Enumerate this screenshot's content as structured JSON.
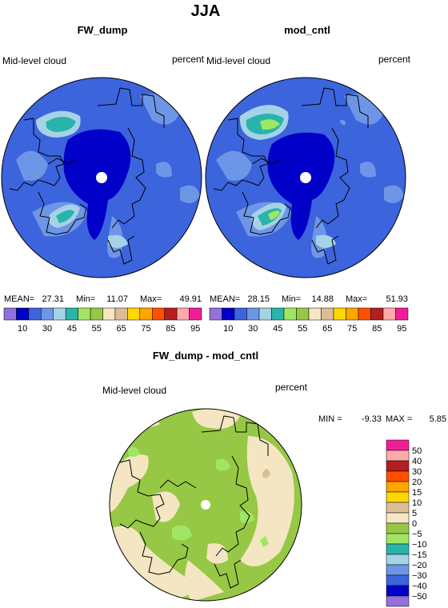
{
  "title": "JJA",
  "chart_data": [
    {
      "type": "heatmap",
      "title": "FW_dump",
      "left_label": "Mid-level cloud",
      "right_label": "percent",
      "stats": [
        {
          "label": "MEAN=",
          "value": "27.31"
        },
        {
          "label": "Min=",
          "value": "11.07"
        },
        {
          "label": "Max=",
          "value": "49.91"
        }
      ],
      "colorbar_ticks": [
        "10",
        "30",
        "45",
        "55",
        "65",
        "75",
        "85",
        "95"
      ],
      "colorbar_colors": [
        "#9370db",
        "#0000c8",
        "#3c64dc",
        "#6e96e6",
        "#a6d2e6",
        "#28b4aa",
        "#a0e664",
        "#96c846",
        "#f5e6c3",
        "#dcbe96",
        "#ffd700",
        "#ffa500",
        "#ff5000",
        "#b41e1e",
        "#ffaaaa",
        "#f01e96"
      ]
    },
    {
      "type": "heatmap",
      "title": "mod_cntl",
      "left_label": "Mid-level cloud",
      "right_label": "percent",
      "stats": [
        {
          "label": "MEAN=",
          "value": "28.15"
        },
        {
          "label": "Min=",
          "value": "14.88"
        },
        {
          "label": "Max=",
          "value": "51.93"
        }
      ],
      "colorbar_ticks": [
        "10",
        "30",
        "45",
        "55",
        "65",
        "75",
        "85",
        "95"
      ],
      "colorbar_colors": [
        "#9370db",
        "#0000c8",
        "#3c64dc",
        "#6e96e6",
        "#a6d2e6",
        "#28b4aa",
        "#a0e664",
        "#96c846",
        "#f5e6c3",
        "#dcbe96",
        "#ffd700",
        "#ffa500",
        "#ff5000",
        "#b41e1e",
        "#ffaaaa",
        "#f01e96"
      ]
    },
    {
      "type": "heatmap",
      "title": "FW_dump - mod_cntl",
      "left_label": "Mid-level cloud",
      "right_label": "percent",
      "min_label": "MIN =",
      "min_value": "-9.33",
      "max_label": "MAX =",
      "max_value": "5.85",
      "colorbar_ticks": [
        "50",
        "40",
        "30",
        "20",
        "15",
        "10",
        "5",
        "0",
        "−5",
        "−10",
        "−15",
        "−20",
        "−30",
        "−40",
        "−50"
      ],
      "colorbar_colors": [
        "#f01e96",
        "#ffaaaa",
        "#b41e1e",
        "#ff5000",
        "#ffa500",
        "#ffd700",
        "#dcbe96",
        "#f5e6c3",
        "#96c846",
        "#a0e664",
        "#28b4aa",
        "#a6d2e6",
        "#6e96e6",
        "#3c64dc",
        "#0000c8",
        "#9370db"
      ]
    }
  ]
}
